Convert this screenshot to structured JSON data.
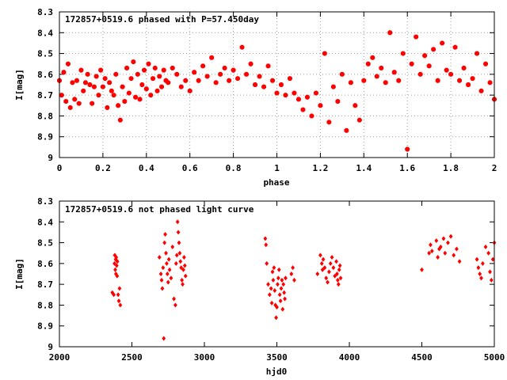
{
  "chart_data": [
    {
      "type": "scatter",
      "title": "172857+0519.6 phased with P=57.450day",
      "xlabel": "phase",
      "ylabel": "I[mag]",
      "xlim": [
        0,
        2
      ],
      "ylim": [
        8.3,
        9.0
      ],
      "y_inverted": true,
      "grid": true,
      "marker_color": "#ff0000",
      "xticks": [
        0,
        0.2,
        0.4,
        0.6,
        0.8,
        1,
        1.2,
        1.4,
        1.6,
        1.8,
        2
      ],
      "xtick_labels": [
        "0",
        "0.2",
        "0.4",
        "0.6",
        "0.8",
        "1",
        "1.2",
        "1.4",
        "1.6",
        "1.8",
        "2"
      ],
      "yticks": [
        8.3,
        8.4,
        8.5,
        8.6,
        8.7,
        8.8,
        8.9,
        9.0
      ],
      "ytick_labels": [
        "8.3",
        "8.4",
        "8.5",
        "8.6",
        "8.7",
        "8.8",
        "8.9",
        "9"
      ],
      "x": [
        0.0,
        0.01,
        0.02,
        0.03,
        0.04,
        0.05,
        0.06,
        0.07,
        0.08,
        0.09,
        0.1,
        0.11,
        0.12,
        0.13,
        0.14,
        0.15,
        0.16,
        0.17,
        0.18,
        0.19,
        0.2,
        0.21,
        0.22,
        0.23,
        0.24,
        0.25,
        0.26,
        0.27,
        0.28,
        0.29,
        0.3,
        0.31,
        0.32,
        0.33,
        0.34,
        0.35,
        0.36,
        0.37,
        0.38,
        0.39,
        0.4,
        0.41,
        0.42,
        0.43,
        0.44,
        0.45,
        0.46,
        0.47,
        0.48,
        0.49,
        0.5,
        0.52,
        0.54,
        0.56,
        0.58,
        0.6,
        0.62,
        0.64,
        0.66,
        0.68,
        0.7,
        0.72,
        0.74,
        0.76,
        0.78,
        0.8,
        0.82,
        0.84,
        0.86,
        0.88,
        0.9,
        0.92,
        0.94,
        0.96,
        0.98,
        1.0,
        1.02,
        1.04,
        1.06,
        1.08,
        1.1,
        1.12,
        1.14,
        1.16,
        1.18,
        1.2,
        1.22,
        1.24,
        1.26,
        1.28,
        1.3,
        1.32,
        1.34,
        1.36,
        1.38,
        1.4,
        1.42,
        1.44,
        1.46,
        1.48,
        1.5,
        1.52,
        1.54,
        1.56,
        1.58,
        1.6,
        1.62,
        1.64,
        1.66,
        1.68,
        1.7,
        1.72,
        1.74,
        1.76,
        1.78,
        1.8,
        1.82,
        1.84,
        1.86,
        1.88,
        1.9,
        1.92,
        1.94,
        1.96,
        1.98,
        2.0
      ],
      "y": [
        8.63,
        8.7,
        8.59,
        8.73,
        8.55,
        8.76,
        8.64,
        8.72,
        8.63,
        8.74,
        8.58,
        8.68,
        8.64,
        8.6,
        8.65,
        8.74,
        8.66,
        8.61,
        8.7,
        8.58,
        8.66,
        8.62,
        8.76,
        8.64,
        8.68,
        8.7,
        8.6,
        8.75,
        8.82,
        8.66,
        8.73,
        8.57,
        8.69,
        8.62,
        8.54,
        8.71,
        8.6,
        8.72,
        8.65,
        8.58,
        8.67,
        8.55,
        8.7,
        8.62,
        8.57,
        8.68,
        8.61,
        8.66,
        8.58,
        8.63,
        8.64,
        8.57,
        8.6,
        8.66,
        8.63,
        8.68,
        8.59,
        8.63,
        8.56,
        8.61,
        8.52,
        8.64,
        8.6,
        8.57,
        8.63,
        8.58,
        8.62,
        8.47,
        8.6,
        8.55,
        8.65,
        8.61,
        8.66,
        8.56,
        8.63,
        8.69,
        8.65,
        8.7,
        8.62,
        8.69,
        8.72,
        8.77,
        8.71,
        8.8,
        8.69,
        8.75,
        8.5,
        8.83,
        8.66,
        8.73,
        8.6,
        8.87,
        8.64,
        8.75,
        8.82,
        8.63,
        8.55,
        8.52,
        8.61,
        8.57,
        8.64,
        8.4,
        8.59,
        8.63,
        8.5,
        8.96,
        8.55,
        8.42,
        8.6,
        8.51,
        8.56,
        8.48,
        8.63,
        8.45,
        8.58,
        8.6,
        8.47,
        8.63,
        8.57,
        8.65,
        8.62,
        8.5,
        8.68,
        8.55,
        8.64,
        8.72
      ]
    },
    {
      "type": "scatter",
      "title": "172857+0519.6 not phased light curve",
      "xlabel": "hjd0",
      "ylabel": "I[mag]",
      "xlim": [
        2000,
        5000
      ],
      "ylim": [
        8.3,
        9.0
      ],
      "y_inverted": true,
      "grid": false,
      "marker_color": "#ff0000",
      "xticks": [
        2000,
        2500,
        3000,
        3500,
        4000,
        4500,
        5000
      ],
      "xtick_labels": [
        "2000",
        "2500",
        "3000",
        "3500",
        "4000",
        "4500",
        "5000"
      ],
      "yticks": [
        8.3,
        8.4,
        8.5,
        8.6,
        8.7,
        8.8,
        8.9,
        9.0
      ],
      "ytick_labels": [
        "8.3",
        "8.4",
        "8.5",
        "8.6",
        "8.7",
        "8.8",
        "8.9",
        "9"
      ],
      "x": [
        2365,
        2375,
        2380,
        2382,
        2385,
        2388,
        2390,
        2392,
        2395,
        2398,
        2400,
        2405,
        2410,
        2415,
        2420,
        2690,
        2700,
        2705,
        2710,
        2715,
        2720,
        2725,
        2730,
        2735,
        2740,
        2745,
        2750,
        2755,
        2760,
        2770,
        2780,
        2790,
        2800,
        2805,
        2810,
        2815,
        2820,
        2825,
        2830,
        2835,
        2840,
        2845,
        2850,
        2855,
        2860,
        2865,
        2870,
        3420,
        3425,
        3430,
        3440,
        3450,
        3460,
        3465,
        3470,
        3475,
        3480,
        3485,
        3490,
        3495,
        3500,
        3505,
        3510,
        3515,
        3520,
        3525,
        3530,
        3535,
        3540,
        3545,
        3550,
        3555,
        3560,
        3600,
        3610,
        3620,
        3780,
        3800,
        3810,
        3815,
        3820,
        3830,
        3840,
        3850,
        3860,
        3870,
        3880,
        3890,
        3900,
        3910,
        3915,
        3920,
        3925,
        3930,
        3935,
        3940,
        4500,
        4550,
        4560,
        4570,
        4600,
        4610,
        4620,
        4630,
        4650,
        4660,
        4680,
        4700,
        4720,
        4740,
        4760,
        4880,
        4890,
        4900,
        4910,
        4920,
        4940,
        4960,
        4970,
        4980,
        4990,
        5000
      ],
      "y": [
        8.74,
        8.75,
        8.6,
        8.56,
        8.63,
        8.58,
        8.65,
        8.57,
        8.61,
        8.66,
        8.59,
        8.75,
        8.78,
        8.72,
        8.8,
        8.57,
        8.65,
        8.68,
        8.72,
        8.62,
        8.96,
        8.5,
        8.46,
        8.55,
        8.6,
        8.65,
        8.69,
        8.58,
        8.63,
        8.67,
        8.52,
        8.77,
        8.8,
        8.6,
        8.56,
        8.4,
        8.45,
        8.5,
        8.55,
        8.59,
        8.62,
        8.68,
        8.7,
        8.63,
        8.57,
        8.61,
        8.66,
        8.48,
        8.51,
        8.6,
        8.7,
        8.75,
        8.72,
        8.79,
        8.64,
        8.68,
        8.62,
        8.73,
        8.8,
        8.86,
        8.81,
        8.7,
        8.67,
        8.63,
        8.75,
        8.78,
        8.72,
        8.68,
        8.82,
        8.7,
        8.74,
        8.77,
        8.67,
        8.65,
        8.62,
        8.68,
        8.65,
        8.56,
        8.6,
        8.63,
        8.58,
        8.62,
        8.67,
        8.69,
        8.64,
        8.6,
        8.57,
        8.62,
        8.66,
        8.59,
        8.65,
        8.68,
        8.7,
        8.63,
        8.61,
        8.67,
        8.63,
        8.55,
        8.51,
        8.54,
        8.49,
        8.57,
        8.53,
        8.52,
        8.48,
        8.55,
        8.5,
        8.47,
        8.56,
        8.53,
        8.59,
        8.58,
        8.62,
        8.65,
        8.67,
        8.6,
        8.52,
        8.55,
        8.64,
        8.68,
        8.58,
        8.5
      ]
    }
  ]
}
